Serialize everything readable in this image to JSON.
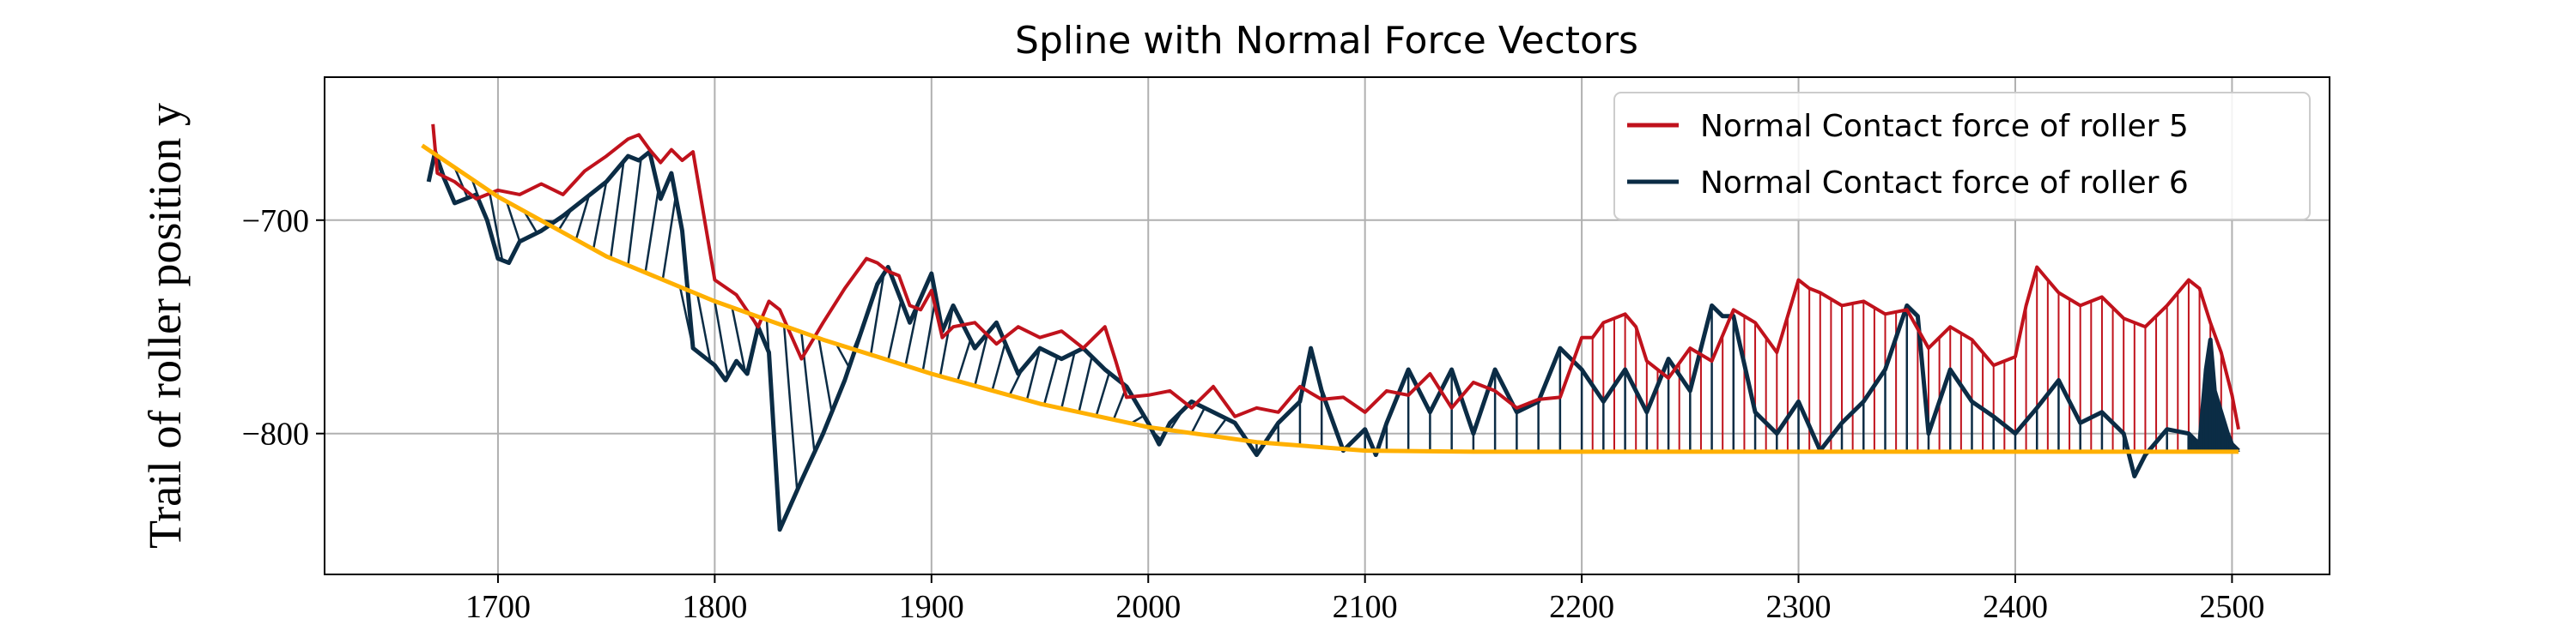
{
  "chart_data": {
    "type": "line",
    "title": "Spline with Normal Force Vectors",
    "xlabel": "",
    "ylabel": "Trail of roller position y",
    "xlim": [
      1620,
      2545
    ],
    "ylim": [
      -866,
      -633
    ],
    "xticks": [
      1700,
      1800,
      1900,
      2000,
      2100,
      2200,
      2300,
      2400,
      2500
    ],
    "yticks": [
      -700,
      -800
    ],
    "ytick_labels": [
      "−700",
      "−800"
    ],
    "grid": true,
    "legend_position": "top-right",
    "colors": {
      "spline": "#ffb000",
      "roller5": "#c0121c",
      "roller6": "#0b2c45"
    },
    "legend": [
      {
        "label": "Normal Contact force of roller 5",
        "color": "#c0121c"
      },
      {
        "label": "Normal Contact force of roller 6",
        "color": "#0b2c45"
      }
    ],
    "spline": {
      "x": [
        1665,
        1700,
        1750,
        1800,
        1850,
        1900,
        1950,
        2000,
        2050,
        2100,
        2150,
        2200,
        2300,
        2400,
        2503
      ],
      "y": [
        -665,
        -689,
        -717,
        -738,
        -756,
        -772,
        -786,
        -797,
        -804,
        -808,
        -808.5,
        -808.5,
        -808.5,
        -808.5,
        -808.5
      ]
    },
    "series": [
      {
        "name": "Normal Contact force of roller 5",
        "x": [
          1670,
          1672,
          1680,
          1690,
          1700,
          1710,
          1720,
          1730,
          1740,
          1750,
          1760,
          1765,
          1770,
          1775,
          1780,
          1785,
          1790,
          1800,
          1810,
          1820,
          1825,
          1830,
          1840,
          1850,
          1860,
          1870,
          1875,
          1880,
          1885,
          1890,
          1895,
          1900,
          1905,
          1910,
          1920,
          1930,
          1940,
          1950,
          1960,
          1970,
          1980,
          1985,
          1990,
          2000,
          2010,
          2020,
          2030,
          2040,
          2050,
          2060,
          2070,
          2080,
          2090,
          2100,
          2110,
          2120,
          2130,
          2140,
          2150,
          2160,
          2170,
          2180,
          2190,
          2200,
          2205,
          2210,
          2220,
          2225,
          2230,
          2240,
          2250,
          2260,
          2270,
          2280,
          2290,
          2300,
          2305,
          2310,
          2320,
          2330,
          2340,
          2350,
          2360,
          2370,
          2380,
          2390,
          2400,
          2405,
          2410,
          2415,
          2420,
          2430,
          2440,
          2450,
          2460,
          2470,
          2480,
          2485,
          2490,
          2495,
          2500,
          2503
        ],
        "y": [
          -655,
          -678,
          -682,
          -690,
          -686,
          -688,
          -683,
          -688,
          -677,
          -670,
          -662,
          -660,
          -667,
          -673,
          -667,
          -672,
          -668,
          -728,
          -735,
          -750,
          -738,
          -742,
          -765,
          -748,
          -732,
          -718,
          -720,
          -724,
          -726,
          -740,
          -742,
          -733,
          -755,
          -750,
          -748,
          -758,
          -750,
          -755,
          -752,
          -760,
          -750,
          -766,
          -783,
          -782,
          -780,
          -788,
          -778,
          -792,
          -788,
          -790,
          -778,
          -784,
          -783,
          -790,
          -780,
          -782,
          -772,
          -788,
          -776,
          -780,
          -788,
          -784,
          -783,
          -755,
          -755,
          -748,
          -744,
          -750,
          -766,
          -774,
          -760,
          -766,
          -742,
          -748,
          -762,
          -728,
          -732,
          -734,
          -740,
          -738,
          -744,
          -742,
          -760,
          -750,
          -756,
          -768,
          -764,
          -740,
          -722,
          -728,
          -734,
          -740,
          -736,
          -746,
          -750,
          -740,
          -728,
          -732,
          -748,
          -762,
          -782,
          -798
        ]
      },
      {
        "name": "Normal Contact force of roller 6",
        "x": [
          1668,
          1671,
          1675,
          1680,
          1690,
          1695,
          1700,
          1705,
          1710,
          1720,
          1730,
          1740,
          1750,
          1760,
          1765,
          1770,
          1775,
          1780,
          1785,
          1790,
          1800,
          1805,
          1810,
          1815,
          1820,
          1825,
          1830,
          1840,
          1850,
          1860,
          1870,
          1875,
          1880,
          1890,
          1900,
          1905,
          1910,
          1920,
          1930,
          1940,
          1950,
          1960,
          1970,
          1980,
          1990,
          2000,
          2005,
          2010,
          2020,
          2030,
          2040,
          2050,
          2060,
          2070,
          2075,
          2080,
          2090,
          2100,
          2105,
          2110,
          2120,
          2130,
          2140,
          2150,
          2160,
          2170,
          2180,
          2190,
          2200,
          2210,
          2220,
          2230,
          2240,
          2250,
          2260,
          2265,
          2270,
          2280,
          2290,
          2300,
          2310,
          2320,
          2330,
          2340,
          2350,
          2355,
          2360,
          2370,
          2380,
          2390,
          2400,
          2410,
          2420,
          2430,
          2440,
          2450,
          2455,
          2460,
          2470,
          2480,
          2485,
          2488,
          2490,
          2492,
          2495,
          2498,
          2500,
          2503
        ],
        "y": [
          -682,
          -668,
          -680,
          -692,
          -688,
          -700,
          -718,
          -720,
          -710,
          -705,
          -698,
          -690,
          -682,
          -670,
          -672,
          -668,
          -690,
          -678,
          -705,
          -760,
          -768,
          -775,
          -766,
          -772,
          -750,
          -762,
          -845,
          -822,
          -800,
          -775,
          -745,
          -730,
          -722,
          -748,
          -725,
          -752,
          -740,
          -760,
          -748,
          -772,
          -760,
          -765,
          -760,
          -770,
          -778,
          -795,
          -805,
          -795,
          -785,
          -790,
          -795,
          -810,
          -795,
          -785,
          -760,
          -780,
          -808,
          -798,
          -810,
          -795,
          -770,
          -790,
          -770,
          -800,
          -770,
          -790,
          -785,
          -760,
          -770,
          -785,
          -770,
          -790,
          -765,
          -780,
          -740,
          -745,
          -745,
          -790,
          -800,
          -785,
          -808,
          -795,
          -785,
          -770,
          -740,
          -745,
          -800,
          -770,
          -785,
          -792,
          -800,
          -788,
          -775,
          -795,
          -790,
          -800,
          -820,
          -810,
          -798,
          -800,
          -805,
          -770,
          -756,
          -780,
          -790,
          -800,
          -805,
          -808
        ]
      }
    ]
  }
}
